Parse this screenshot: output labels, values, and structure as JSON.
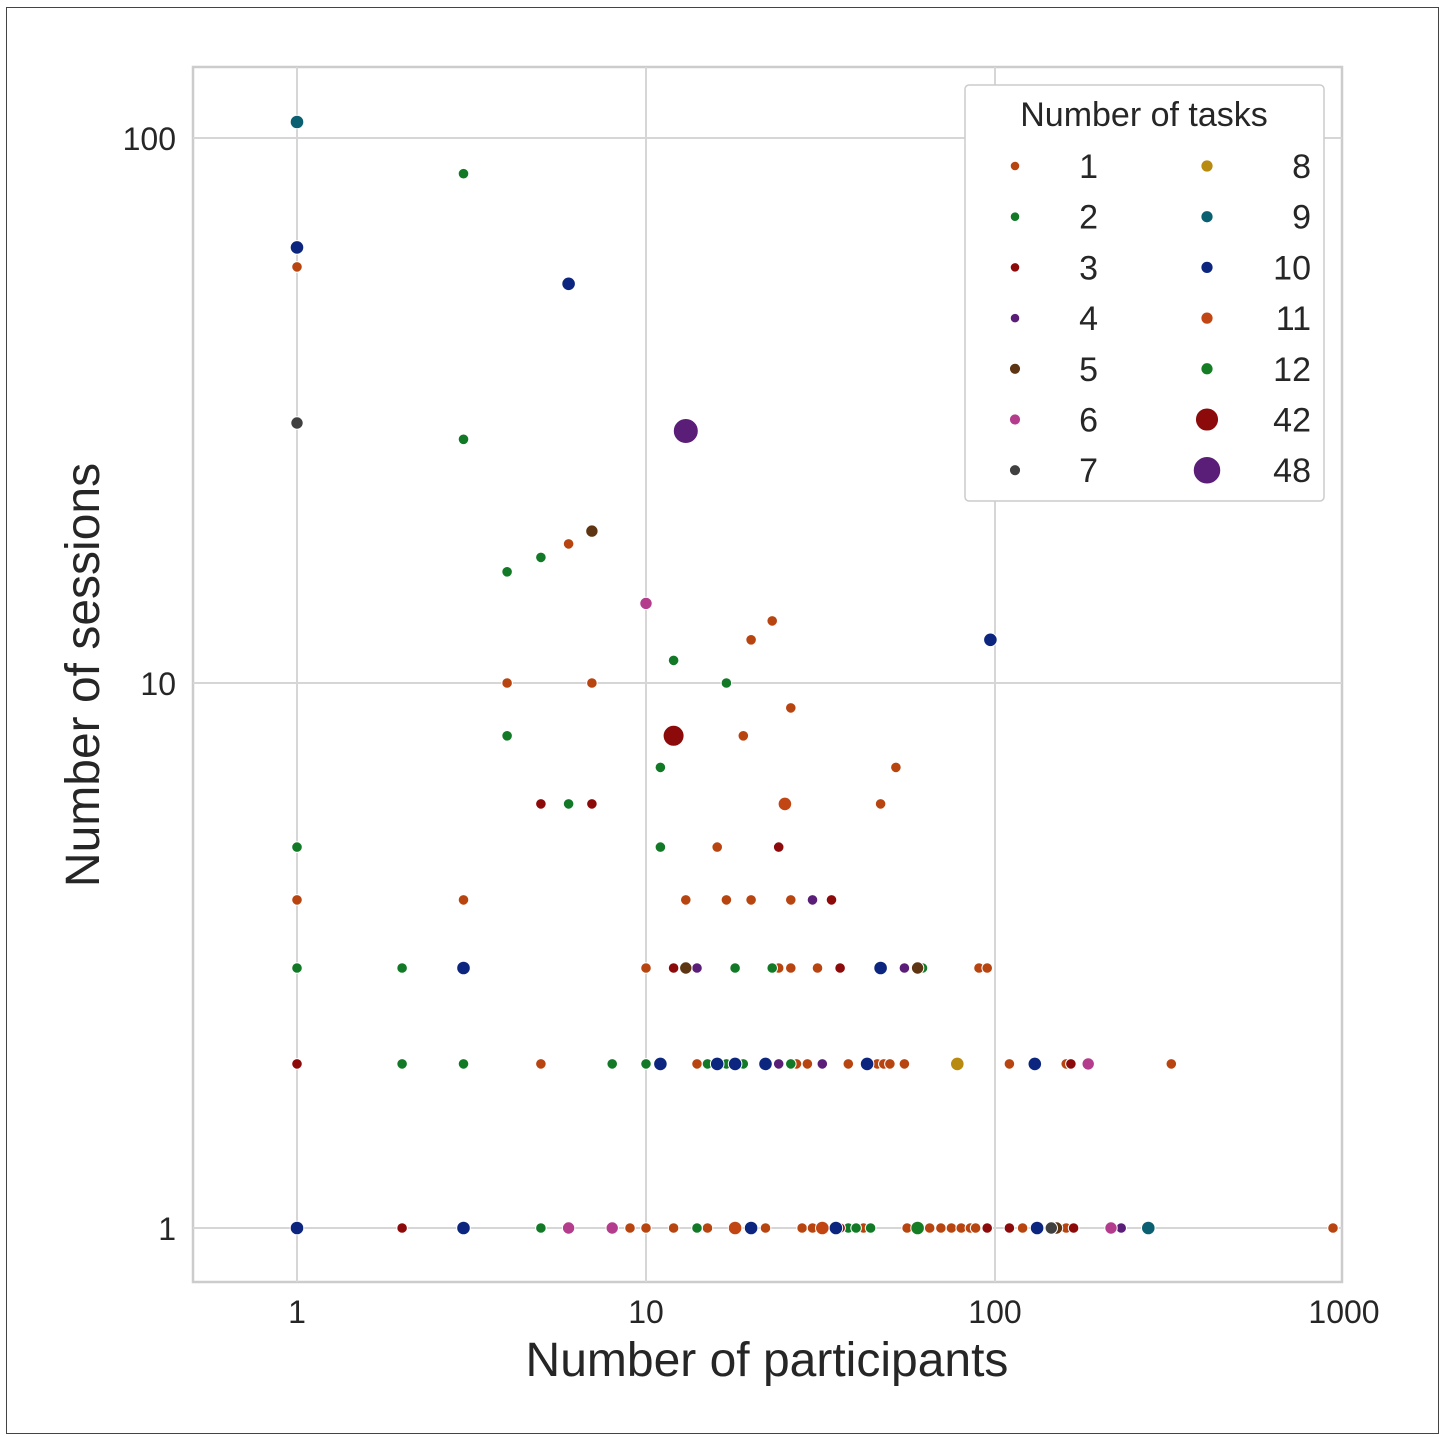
{
  "chart_data": {
    "type": "scatter",
    "title": "",
    "xlabel": "Number of participants",
    "ylabel": "Number of sessions",
    "xscale": "log",
    "yscale": "log",
    "xlim": [
      0.5,
      1000
    ],
    "ylim": [
      0.8,
      135
    ],
    "xticks": [
      1,
      10,
      100,
      1000
    ],
    "xtick_labels": [
      "1",
      "10",
      "100",
      "1000"
    ],
    "yticks": [
      1,
      10,
      100
    ],
    "ytick_labels": [
      "1",
      "10",
      "100"
    ],
    "grid": true,
    "legend": {
      "title": "Number of tasks",
      "placement": "top-right",
      "columns": 2
    },
    "colors": {
      "1": "#b84410",
      "2": "#127a27",
      "3": "#8c0a0a",
      "4": "#5a1e78",
      "5": "#5e3512",
      "6": "#b43c8c",
      "7": "#404040",
      "8": "#b88a10",
      "9": "#0a6070",
      "10": "#0c2680",
      "11": "#c24614",
      "12": "#157e25",
      "42": "#8c0a0a",
      "48": "#5a1e78"
    },
    "series": [
      {
        "name": "1",
        "points": [
          [
            1,
            4
          ],
          [
            1,
            58
          ],
          [
            3,
            4
          ],
          [
            4,
            10
          ],
          [
            6,
            18
          ],
          [
            7,
            10
          ],
          [
            5,
            2
          ],
          [
            9,
            1
          ],
          [
            10,
            1
          ],
          [
            10,
            3
          ],
          [
            10,
            2
          ],
          [
            12,
            1
          ],
          [
            13,
            4
          ],
          [
            14,
            2
          ],
          [
            15,
            1
          ],
          [
            16,
            5
          ],
          [
            17,
            4
          ],
          [
            18,
            3
          ],
          [
            19,
            8
          ],
          [
            20,
            4
          ],
          [
            20,
            12
          ],
          [
            22,
            1
          ],
          [
            23,
            13
          ],
          [
            24,
            3
          ],
          [
            25,
            6
          ],
          [
            26,
            3
          ],
          [
            26,
            9
          ],
          [
            26,
            4
          ],
          [
            27,
            2
          ],
          [
            28,
            1
          ],
          [
            29,
            2
          ],
          [
            30,
            1
          ],
          [
            31,
            3
          ],
          [
            32,
            1
          ],
          [
            38,
            2
          ],
          [
            42,
            1
          ],
          [
            46,
            2
          ],
          [
            47,
            6
          ],
          [
            48,
            2
          ],
          [
            50,
            2
          ],
          [
            52,
            7
          ],
          [
            55,
            2
          ],
          [
            56,
            1
          ],
          [
            65,
            1
          ],
          [
            70,
            1
          ],
          [
            75,
            1
          ],
          [
            80,
            1
          ],
          [
            85,
            1
          ],
          [
            88,
            1
          ],
          [
            90,
            3
          ],
          [
            95,
            3
          ],
          [
            110,
            2
          ],
          [
            120,
            1
          ],
          [
            160,
            1
          ],
          [
            160,
            2
          ],
          [
            320,
            2
          ],
          [
            930,
            1
          ]
        ]
      },
      {
        "name": "2",
        "points": [
          [
            1,
            5
          ],
          [
            1,
            3
          ],
          [
            2,
            3
          ],
          [
            2,
            2
          ],
          [
            3,
            86
          ],
          [
            3,
            28
          ],
          [
            3,
            2
          ],
          [
            4,
            16
          ],
          [
            4,
            8
          ],
          [
            5,
            17
          ],
          [
            5,
            1
          ],
          [
            6,
            6
          ],
          [
            8,
            2
          ],
          [
            10,
            2
          ],
          [
            11,
            7
          ],
          [
            11,
            5
          ],
          [
            12,
            11
          ],
          [
            12,
            8
          ],
          [
            14,
            1
          ],
          [
            15,
            2
          ],
          [
            17,
            10
          ],
          [
            17,
            2
          ],
          [
            18,
            3
          ],
          [
            19,
            2
          ],
          [
            23,
            3
          ],
          [
            26,
            2
          ],
          [
            38,
            1
          ],
          [
            40,
            1
          ],
          [
            44,
            1
          ],
          [
            60,
            1
          ],
          [
            62,
            3
          ]
        ]
      },
      {
        "name": "3",
        "points": [
          [
            1,
            2
          ],
          [
            2,
            1
          ],
          [
            5,
            6
          ],
          [
            7,
            6
          ],
          [
            12,
            3
          ],
          [
            24,
            5
          ],
          [
            34,
            4
          ],
          [
            36,
            3
          ],
          [
            36,
            1
          ],
          [
            95,
            1
          ],
          [
            110,
            1
          ],
          [
            165,
            2
          ],
          [
            168,
            1
          ]
        ]
      },
      {
        "name": "4",
        "points": [
          [
            14,
            3
          ],
          [
            24,
            2
          ],
          [
            30,
            4
          ],
          [
            32,
            2
          ],
          [
            35,
            1
          ],
          [
            55,
            3
          ],
          [
            230,
            1
          ]
        ]
      },
      {
        "name": "5",
        "points": [
          [
            7,
            19
          ],
          [
            13,
            3
          ],
          [
            60,
            3
          ],
          [
            150,
            1
          ]
        ]
      },
      {
        "name": "6",
        "points": [
          [
            6,
            1
          ],
          [
            8,
            1
          ],
          [
            10,
            14
          ],
          [
            185,
            2
          ],
          [
            215,
            1
          ]
        ]
      },
      {
        "name": "7",
        "points": [
          [
            1,
            30
          ],
          [
            145,
            1
          ]
        ]
      },
      {
        "name": "8",
        "points": [
          [
            78,
            2
          ]
        ]
      },
      {
        "name": "9",
        "points": [
          [
            1,
            107
          ],
          [
            275,
            1
          ]
        ]
      },
      {
        "name": "10",
        "points": [
          [
            1,
            63
          ],
          [
            1,
            1
          ],
          [
            3,
            3
          ],
          [
            3,
            1
          ],
          [
            6,
            54
          ],
          [
            11,
            2
          ],
          [
            16,
            2
          ],
          [
            18,
            2
          ],
          [
            20,
            1
          ],
          [
            22,
            2
          ],
          [
            35,
            1
          ],
          [
            43,
            2
          ],
          [
            47,
            3
          ],
          [
            97,
            12
          ],
          [
            130,
            2
          ],
          [
            132,
            1
          ]
        ]
      },
      {
        "name": "11",
        "points": [
          [
            25,
            6
          ],
          [
            18,
            1
          ],
          [
            32,
            1
          ]
        ]
      },
      {
        "name": "12",
        "points": [
          [
            12,
            8
          ],
          [
            60,
            1
          ]
        ]
      },
      {
        "name": "42",
        "points": [
          [
            12,
            8
          ]
        ]
      },
      {
        "name": "48",
        "points": [
          [
            13,
            29
          ]
        ]
      }
    ]
  }
}
